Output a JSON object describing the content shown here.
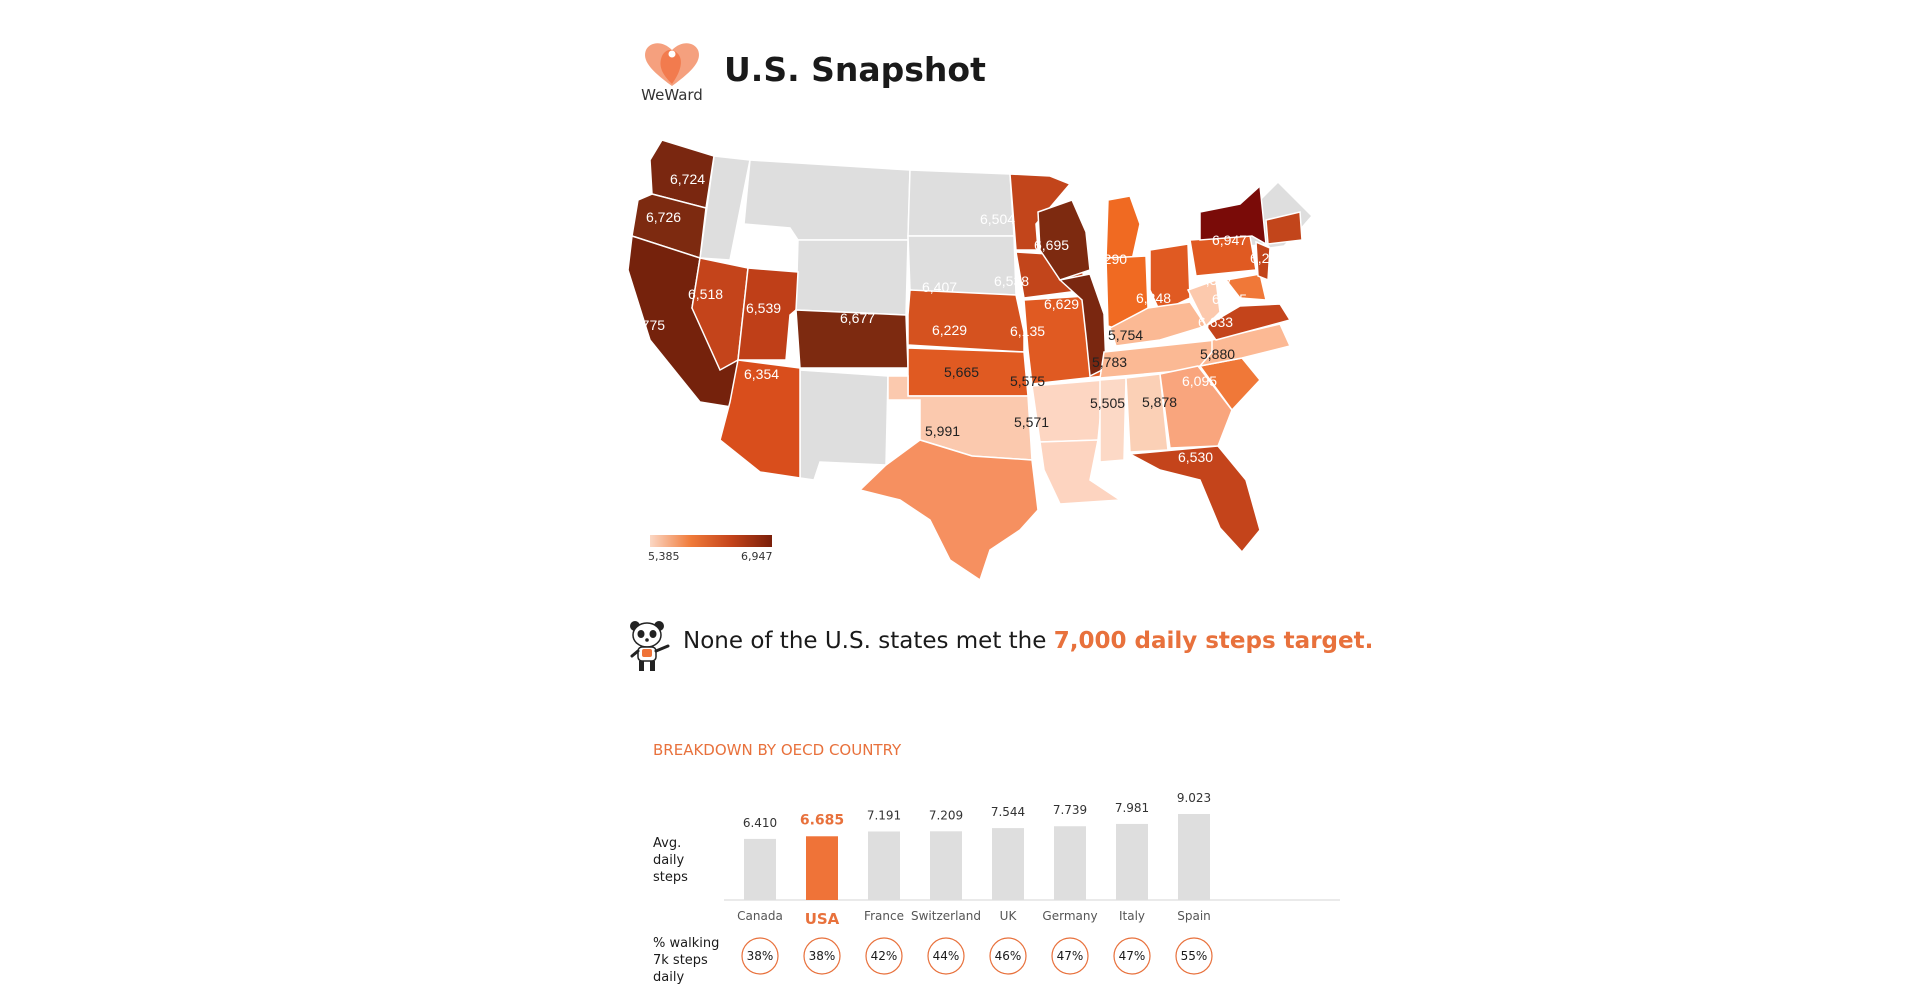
{
  "header": {
    "logo_text": "WeWard",
    "title": "U.S. Snapshot"
  },
  "colors": {
    "accent": "#e8713c",
    "bar_default": "#dedede",
    "bar_highlight": "#ef7338",
    "no_data": "#dedede"
  },
  "map": {
    "legend_min": "5,385",
    "legend_max": "6,947",
    "states": [
      {
        "state": "WA",
        "value": "6,724"
      },
      {
        "state": "OR",
        "value": "6,726"
      },
      {
        "state": "CA",
        "value": "6,775"
      },
      {
        "state": "NV",
        "value": "6,518"
      },
      {
        "state": "UT",
        "value": "6,539"
      },
      {
        "state": "AZ",
        "value": "6,354"
      },
      {
        "state": "CO",
        "value": "6,677"
      },
      {
        "state": "NE",
        "value": "6,407"
      },
      {
        "state": "KS",
        "value": "6,229"
      },
      {
        "state": "OK",
        "value": "5,665"
      },
      {
        "state": "TX",
        "value": "5,991"
      },
      {
        "state": "MN",
        "value": "6,504"
      },
      {
        "state": "IA",
        "value": "6,538"
      },
      {
        "state": "MO",
        "value": "6,135"
      },
      {
        "state": "AR",
        "value": "5,575"
      },
      {
        "state": "LA",
        "value": "5,571"
      },
      {
        "state": "WI",
        "value": "6,695"
      },
      {
        "state": "IL",
        "value": "6,629"
      },
      {
        "state": "MI",
        "value": "6,290"
      },
      {
        "state": "OH",
        "value": "6,348"
      },
      {
        "state": "KY",
        "value": "5,754"
      },
      {
        "state": "TN",
        "value": "5,783"
      },
      {
        "state": "MS",
        "value": "5,505"
      },
      {
        "state": "AL",
        "value": "5,878"
      },
      {
        "state": "GA",
        "value": "6,095"
      },
      {
        "state": "FL",
        "value": "6,530"
      },
      {
        "state": "SC",
        "value": "6,095"
      },
      {
        "state": "NC",
        "value": "5,880"
      },
      {
        "state": "VA",
        "value": "6,633"
      },
      {
        "state": "PA",
        "value": "6,327"
      },
      {
        "state": "MD",
        "value": "6,165"
      },
      {
        "state": "NY",
        "value": "6,947"
      },
      {
        "state": "MA",
        "value": "6,282"
      }
    ]
  },
  "message": {
    "prefix": "None of the U.S. states met the ",
    "highlight": "7,000 daily steps target."
  },
  "section_title": "BREAKDOWN BY OECD COUNTRY",
  "y_row_label": "Avg.\ndaily\nsteps",
  "pct_row_label": "% walking\n7k steps\ndaily",
  "chart_data": {
    "type": "bar",
    "title": "BREAKDOWN BY OECD COUNTRY",
    "categories": [
      "Canada",
      "USA",
      "France",
      "Switzerland",
      "UK",
      "Germany",
      "Italy",
      "Spain"
    ],
    "series": [
      {
        "name": "Avg. daily steps",
        "values": [
          6410,
          6685,
          7191,
          7209,
          7544,
          7739,
          7981,
          9023
        ]
      }
    ],
    "value_labels": [
      "6.410",
      "6.685",
      "7.191",
      "7.209",
      "7.544",
      "7.739",
      "7.981",
      "9.023"
    ],
    "pct_walking_7k": [
      "38%",
      "38%",
      "42%",
      "44%",
      "46%",
      "47%",
      "47%",
      "55%"
    ],
    "highlight": "USA",
    "ylim": [
      0,
      9023
    ],
    "grid": false
  }
}
